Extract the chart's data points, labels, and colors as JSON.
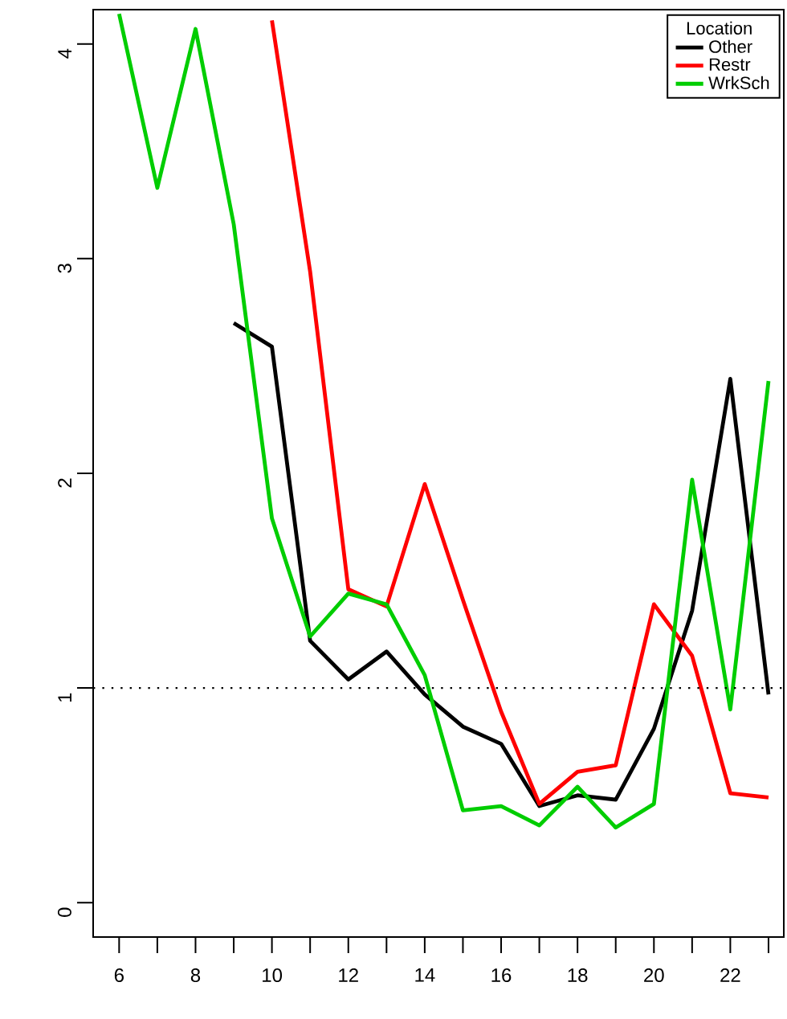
{
  "chart_data": {
    "type": "line",
    "legend_title": "Location",
    "x": [
      6,
      7,
      8,
      9,
      10,
      11,
      12,
      13,
      14,
      15,
      16,
      17,
      18,
      19,
      20,
      21,
      22,
      23
    ],
    "series": [
      {
        "name": "Other",
        "color": "#000000",
        "values": [
          null,
          null,
          null,
          2.7,
          2.59,
          1.22,
          1.04,
          1.17,
          0.97,
          0.82,
          0.74,
          0.45,
          0.5,
          0.48,
          0.81,
          1.36,
          2.44,
          0.97
        ]
      },
      {
        "name": "Restr",
        "color": "#ff0000",
        "values": [
          null,
          null,
          null,
          null,
          4.11,
          2.94,
          1.46,
          1.38,
          1.95,
          1.41,
          0.89,
          0.46,
          0.61,
          0.64,
          1.39,
          1.15,
          0.51,
          0.49
        ]
      },
      {
        "name": "WrkSch",
        "color": "#00cd00",
        "values": [
          4.14,
          3.33,
          4.07,
          3.16,
          1.79,
          1.24,
          1.44,
          1.39,
          1.06,
          0.43,
          0.45,
          0.36,
          0.54,
          0.35,
          0.46,
          1.97,
          0.9,
          2.43
        ]
      }
    ],
    "xlim": [
      5.32,
      23.4
    ],
    "ylim": [
      -0.16,
      4.16
    ],
    "xticks": [
      6,
      {
        "value": 7,
        "label": null
      },
      8,
      {
        "value": 9,
        "label": null
      },
      10,
      {
        "value": 11,
        "label": null
      },
      12,
      {
        "value": 13,
        "label": null
      },
      14,
      {
        "value": 15,
        "label": null
      },
      16,
      {
        "value": 17,
        "label": null
      },
      18,
      {
        "value": 19,
        "label": null
      },
      20,
      {
        "value": 21,
        "label": null
      },
      22,
      {
        "value": 23,
        "label": null
      }
    ],
    "yticks": [
      0,
      1,
      2,
      3,
      4
    ],
    "ref_lines": [
      {
        "axis": "y",
        "value": 1,
        "color": "#000000",
        "line_style": "dotted"
      }
    ],
    "legend": "top right",
    "grid": false,
    "marker": "none",
    "line_style": "solid"
  }
}
